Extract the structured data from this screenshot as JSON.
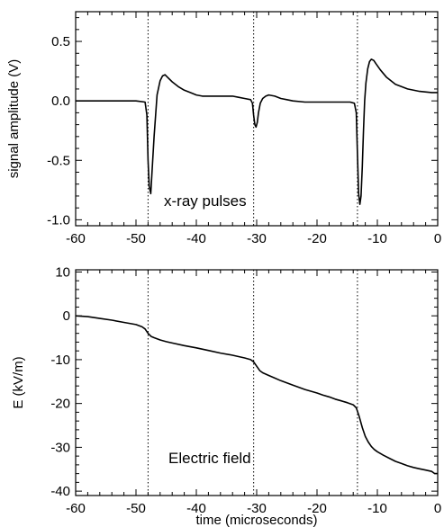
{
  "chart_data": [
    {
      "type": "line",
      "id": "top",
      "title": "",
      "xlabel": "",
      "ylabel": "signal amplitude (V)",
      "xlim": [
        -60,
        0
      ],
      "ylim": [
        -1.05,
        0.75
      ],
      "grid": false,
      "x_ticks": [
        -60,
        -50,
        -40,
        -30,
        -20,
        -10,
        0
      ],
      "x_tick_labels": [
        "-60",
        "-50",
        "-40",
        "-30",
        "-20",
        "-10",
        "0"
      ],
      "y_ticks": [
        0.5,
        0.0,
        -0.5,
        -1.0
      ],
      "y_tick_labels": [
        "0.5",
        "0.0",
        "-0.5",
        "-1.0"
      ],
      "vlines": [
        -48.0,
        -30.5,
        -13.3
      ],
      "annotation": "x-ray pulses",
      "series": [
        {
          "x": [
            -60,
            -55,
            -50,
            -48.5,
            -48.2,
            -48.0,
            -47.8,
            -47.55,
            -47.4,
            -47.0,
            -46.5,
            -46.0,
            -45.6,
            -45.2,
            -44.8,
            -44.0,
            -43.0,
            -42.0,
            -41.0,
            -40.0,
            -39.0,
            -38.0,
            -37.0,
            -36.0,
            -35.0,
            -34.0,
            -33.0,
            -32.0,
            -31.0,
            -30.7,
            -30.5,
            -30.3,
            -30.1,
            -29.9,
            -29.7,
            -29.4,
            -29.0,
            -28.5,
            -28.0,
            -27.0,
            -26.0,
            -25.0,
            -24.0,
            -22.0,
            -20.0,
            -18.0,
            -16.0,
            -14.5,
            -13.8,
            -13.5,
            -13.3,
            -13.1,
            -12.9,
            -12.7,
            -12.5,
            -12.3,
            -12.1,
            -11.9,
            -11.6,
            -11.3,
            -11.0,
            -10.6,
            -10.2,
            -9.5,
            -8.5,
            -7.0,
            -5.0,
            -3.0,
            -1.0,
            0.0
          ],
          "y": [
            0.0,
            0.0,
            0.0,
            -0.01,
            -0.12,
            -0.5,
            -0.72,
            -0.78,
            -0.65,
            -0.3,
            0.05,
            0.17,
            0.21,
            0.22,
            0.2,
            0.16,
            0.12,
            0.09,
            0.07,
            0.05,
            0.04,
            0.04,
            0.04,
            0.04,
            0.04,
            0.04,
            0.03,
            0.02,
            0.01,
            -0.02,
            -0.12,
            -0.2,
            -0.22,
            -0.18,
            -0.1,
            -0.02,
            0.02,
            0.04,
            0.05,
            0.04,
            0.02,
            0.01,
            0.0,
            -0.01,
            -0.01,
            -0.01,
            -0.01,
            -0.01,
            -0.02,
            -0.1,
            -0.45,
            -0.78,
            -0.87,
            -0.8,
            -0.55,
            -0.25,
            0.0,
            0.15,
            0.27,
            0.33,
            0.35,
            0.34,
            0.31,
            0.26,
            0.2,
            0.14,
            0.1,
            0.08,
            0.07,
            0.07
          ]
        }
      ]
    },
    {
      "type": "line",
      "id": "bottom",
      "title": "",
      "xlabel": "time (microseconds)",
      "ylabel": "E (kV/m)",
      "xlim": [
        -60,
        0
      ],
      "ylim": [
        -41,
        10.5
      ],
      "grid": false,
      "x_ticks": [
        -60,
        -50,
        -40,
        -30,
        -20,
        -10,
        0
      ],
      "x_tick_labels": [
        "-60",
        "-50",
        "-40",
        "-30",
        "-20",
        "-10",
        "0"
      ],
      "y_ticks": [
        10,
        0,
        -10,
        -20,
        -30,
        -40
      ],
      "y_tick_labels": [
        "10",
        "0",
        "-10",
        "-20",
        "-30",
        "-40"
      ],
      "vlines": [
        -48.0,
        -30.5,
        -13.3
      ],
      "annotation": "Electric field",
      "series": [
        {
          "x": [
            -60,
            -58,
            -56,
            -54,
            -52,
            -50,
            -49,
            -48.5,
            -48.0,
            -47.5,
            -47.0,
            -46.0,
            -45.0,
            -44.0,
            -42.0,
            -40.0,
            -38.0,
            -36.0,
            -34.0,
            -32.0,
            -31.0,
            -30.5,
            -30.0,
            -29.5,
            -29.0,
            -28.0,
            -27.0,
            -26.0,
            -24.0,
            -22.0,
            -20.0,
            -19.0,
            -18.0,
            -17.0,
            -16.0,
            -15.0,
            -14.0,
            -13.5,
            -13.0,
            -12.5,
            -12.0,
            -11.5,
            -11.0,
            -10.5,
            -10.0,
            -9.0,
            -8.0,
            -7.0,
            -6.0,
            -5.0,
            -4.0,
            -3.0,
            -2.0,
            -1.0,
            -0.5,
            0.0
          ],
          "y": [
            0.0,
            -0.2,
            -0.6,
            -1.0,
            -1.5,
            -2.0,
            -2.5,
            -3.0,
            -4.0,
            -4.7,
            -5.0,
            -5.5,
            -5.9,
            -6.2,
            -6.8,
            -7.3,
            -7.9,
            -8.5,
            -9.0,
            -9.6,
            -10.0,
            -10.5,
            -11.5,
            -12.5,
            -13.0,
            -13.6,
            -14.2,
            -14.8,
            -15.8,
            -16.8,
            -17.6,
            -18.1,
            -18.5,
            -19.0,
            -19.4,
            -19.8,
            -20.3,
            -21.0,
            -23.0,
            -25.5,
            -27.5,
            -28.8,
            -29.8,
            -30.5,
            -31.0,
            -31.8,
            -32.5,
            -33.2,
            -33.7,
            -34.2,
            -34.6,
            -34.9,
            -35.2,
            -35.5,
            -36.0,
            -36.0
          ]
        }
      ]
    }
  ]
}
